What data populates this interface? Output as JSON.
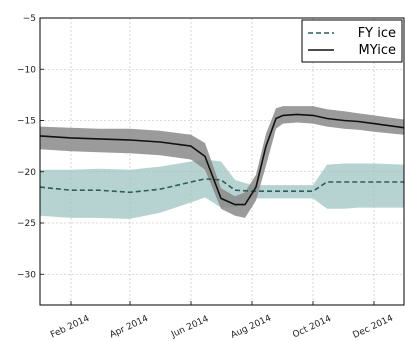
{
  "chart_data": {
    "type": "line",
    "title": "",
    "xlabel": "",
    "ylabel": "",
    "xlim": [
      "2014-01-01",
      "2014-12-31"
    ],
    "ylim": [
      -33,
      -5
    ],
    "x_ticks": [
      "2014-02-01",
      "2014-04-01",
      "2014-06-01",
      "2014-08-01",
      "2014-10-01",
      "2014-12-01"
    ],
    "x_tick_labels": [
      "Feb 2014",
      "Apr 2014",
      "Jun 2014",
      "Aug 2014",
      "Oct 2014",
      "Dec 2014"
    ],
    "y_ticks": [
      -5,
      -10,
      -15,
      -20,
      -25,
      -30
    ],
    "y_tick_labels": [
      "−5",
      "−10",
      "−15",
      "−20",
      "−25",
      "−30"
    ],
    "grid": true,
    "legend": "top-right",
    "series": [
      {
        "name": "FY ice",
        "style": "dashed",
        "color": "#2f5f5a",
        "band_color": "#9fc4c1",
        "x": [
          "2014-01-01",
          "2014-02-01",
          "2014-03-01",
          "2014-04-01",
          "2014-05-01",
          "2014-06-01",
          "2014-06-15",
          "2014-07-01",
          "2014-07-15",
          "2014-08-01",
          "2014-08-15",
          "2014-09-01",
          "2014-09-15",
          "2014-10-01",
          "2014-10-15",
          "2014-11-01",
          "2014-11-15",
          "2014-12-01",
          "2014-12-31"
        ],
        "y": [
          -21.5,
          -21.8,
          -21.8,
          -22.0,
          -21.7,
          -21.0,
          -20.7,
          -20.8,
          -21.8,
          -21.9,
          -21.9,
          -21.9,
          -21.9,
          -21.9,
          -21.0,
          -21.0,
          -21.0,
          -21.0,
          -21.0
        ],
        "upper": [
          -19.8,
          -19.8,
          -19.7,
          -19.8,
          -19.5,
          -19.0,
          -18.8,
          -19.0,
          -20.8,
          -21.3,
          -21.3,
          -21.3,
          -21.3,
          -21.3,
          -19.3,
          -19.2,
          -19.2,
          -19.2,
          -19.3
        ],
        "lower": [
          -24.3,
          -24.5,
          -24.5,
          -24.6,
          -24.0,
          -23.0,
          -22.5,
          -23.5,
          -23.5,
          -22.6,
          -22.6,
          -22.6,
          -22.6,
          -22.6,
          -23.6,
          -23.6,
          -23.5,
          -23.5,
          -23.5
        ]
      },
      {
        "name": "MYice",
        "style": "solid",
        "color": "#111111",
        "band_color": "#8a8a8a",
        "x": [
          "2014-01-01",
          "2014-02-01",
          "2014-03-01",
          "2014-04-01",
          "2014-05-01",
          "2014-06-01",
          "2014-06-15",
          "2014-07-01",
          "2014-07-15",
          "2014-07-25",
          "2014-08-05",
          "2014-08-15",
          "2014-08-25",
          "2014-09-01",
          "2014-09-15",
          "2014-10-01",
          "2014-10-15",
          "2014-11-01",
          "2014-11-15",
          "2014-12-01",
          "2014-12-31"
        ],
        "y": [
          -16.5,
          -16.7,
          -16.8,
          -16.9,
          -17.1,
          -17.5,
          -18.5,
          -22.6,
          -23.2,
          -23.2,
          -21.5,
          -17.5,
          -14.8,
          -14.5,
          -14.4,
          -14.5,
          -14.8,
          -15.0,
          -15.1,
          -15.3,
          -15.7
        ],
        "upper": [
          -15.6,
          -15.7,
          -15.8,
          -15.8,
          -16.0,
          -16.4,
          -17.2,
          -21.6,
          -22.4,
          -22.0,
          -20.3,
          -16.3,
          -13.8,
          -13.6,
          -13.6,
          -13.6,
          -13.9,
          -14.1,
          -14.3,
          -14.5,
          -14.9
        ],
        "lower": [
          -17.8,
          -18.0,
          -18.1,
          -18.2,
          -18.4,
          -18.8,
          -19.8,
          -23.6,
          -24.3,
          -24.5,
          -22.8,
          -19.4,
          -15.8,
          -15.3,
          -15.2,
          -15.3,
          -15.6,
          -15.8,
          -15.9,
          -16.1,
          -16.4
        ]
      }
    ]
  }
}
